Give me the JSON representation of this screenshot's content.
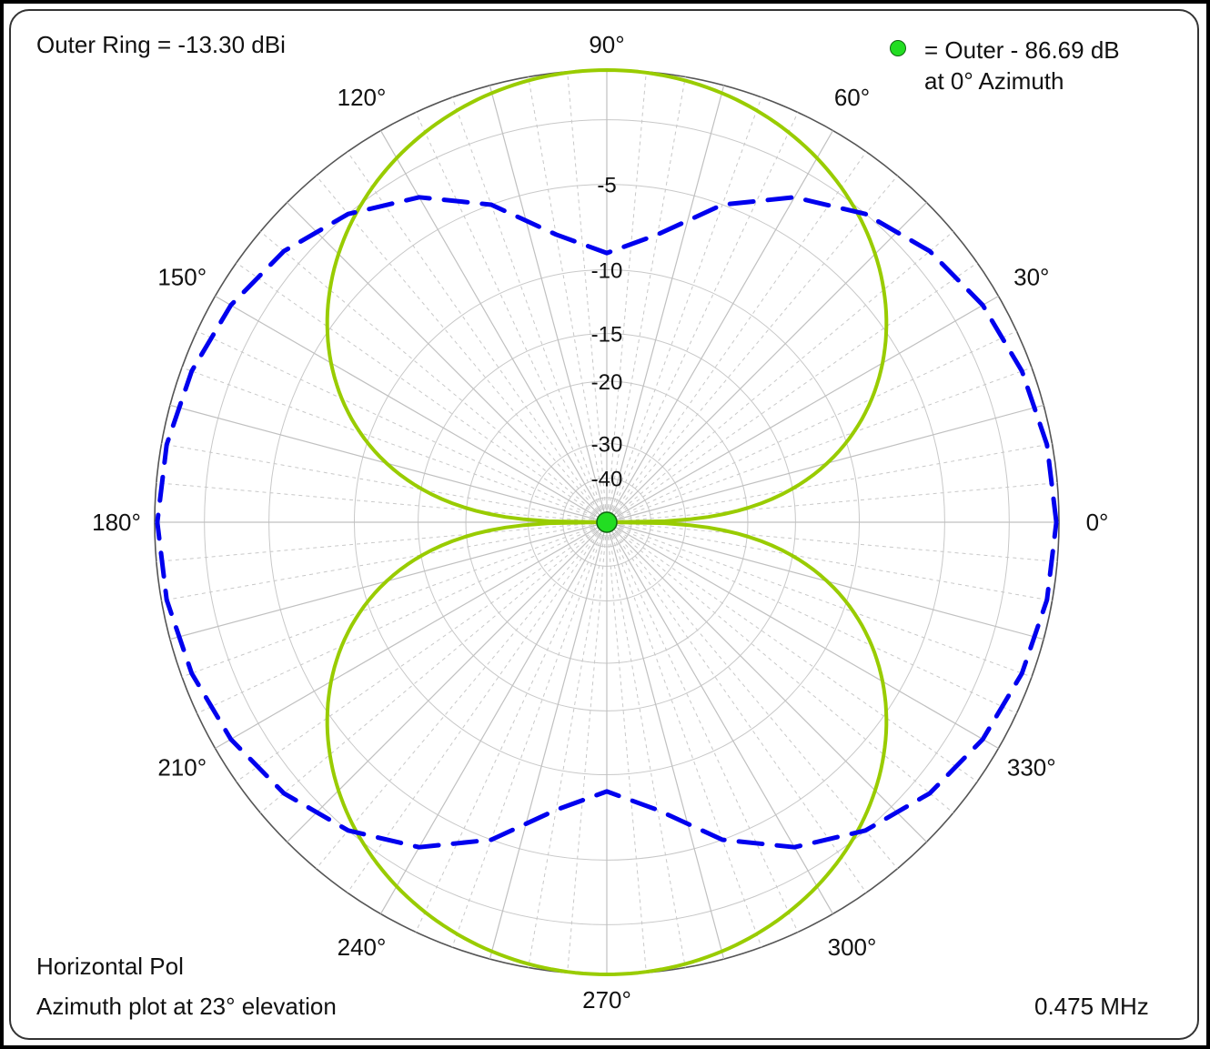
{
  "header": {
    "outer_ring_label": "Outer Ring = -13.30  dBi",
    "legend_line1": "= Outer - 86.69  dB",
    "legend_line2": "at 0° Azimuth"
  },
  "footer": {
    "polarization": "Horizontal Pol",
    "description": "Azimuth plot at 23° elevation",
    "frequency": "0.475 MHz"
  },
  "colors": {
    "horizontal_pattern": "#99cc00",
    "dashed_pattern": "#0000ee",
    "center_marker": "#22dd22",
    "grid_solid": "#c8c8c8",
    "grid_dashed": "#c8c8c8"
  },
  "chart_data": {
    "type": "polar",
    "angle_labels": [
      "0°",
      "30°",
      "60°",
      "90°",
      "120°",
      "150°",
      "180°",
      "210°",
      "240°",
      "270°",
      "300°",
      "330°"
    ],
    "angle_values": [
      0,
      30,
      60,
      90,
      120,
      150,
      180,
      210,
      240,
      270,
      300,
      330
    ],
    "ring_labels": [
      "-5",
      "-10",
      "-15",
      "-20",
      "-30",
      "-40"
    ],
    "ring_values_db": [
      -5,
      -10,
      -15,
      -20,
      -30,
      -40
    ],
    "outer_ring_dbi": -13.3,
    "center_marker": "Outer - 86.69 dB at 0° Azimuth",
    "series": [
      {
        "style": "solid",
        "color": "#99cc00",
        "azimuth_deg": [
          0,
          5,
          10,
          15,
          20,
          30,
          45,
          60,
          75,
          90,
          105,
          120,
          135,
          150,
          160,
          165,
          170,
          175,
          180,
          185,
          190,
          195,
          200,
          210,
          225,
          240,
          255,
          270,
          285,
          300,
          315,
          330,
          340,
          345,
          350,
          355
        ],
        "gain_db_rel_outer": [
          -86.7,
          -21.2,
          -15.2,
          -11.7,
          -9.3,
          -6.0,
          -3.0,
          -1.3,
          -0.3,
          0.0,
          -0.3,
          -1.3,
          -3.0,
          -6.0,
          -9.3,
          -11.7,
          -15.2,
          -21.2,
          -86.7,
          -21.2,
          -15.2,
          -11.7,
          -9.3,
          -6.0,
          -3.0,
          -1.3,
          -0.3,
          0.0,
          -0.3,
          -1.3,
          -3.0,
          -6.0,
          -9.3,
          -11.7,
          -15.2,
          -21.2
        ]
      },
      {
        "style": "dashed",
        "color": "#0000ee",
        "azimuth_deg": [
          0,
          10,
          20,
          30,
          40,
          50,
          60,
          70,
          80,
          90,
          100,
          110,
          120,
          130,
          140,
          150,
          160,
          170,
          180,
          190,
          200,
          210,
          220,
          230,
          240,
          250,
          260,
          270,
          280,
          290,
          300,
          310,
          320,
          330,
          340,
          350
        ],
        "gain_db_rel_outer": [
          -0.1,
          -0.2,
          -0.4,
          -0.7,
          -1.2,
          -2.0,
          -3.2,
          -5.0,
          -7.5,
          -8.9,
          -7.5,
          -5.0,
          -3.2,
          -2.0,
          -1.2,
          -0.7,
          -0.4,
          -0.2,
          -0.1,
          -0.2,
          -0.4,
          -0.7,
          -1.2,
          -2.0,
          -3.2,
          -5.0,
          -7.5,
          -8.9,
          -7.5,
          -5.0,
          -3.2,
          -2.0,
          -1.2,
          -0.7,
          -0.4,
          -0.2
        ]
      }
    ]
  }
}
